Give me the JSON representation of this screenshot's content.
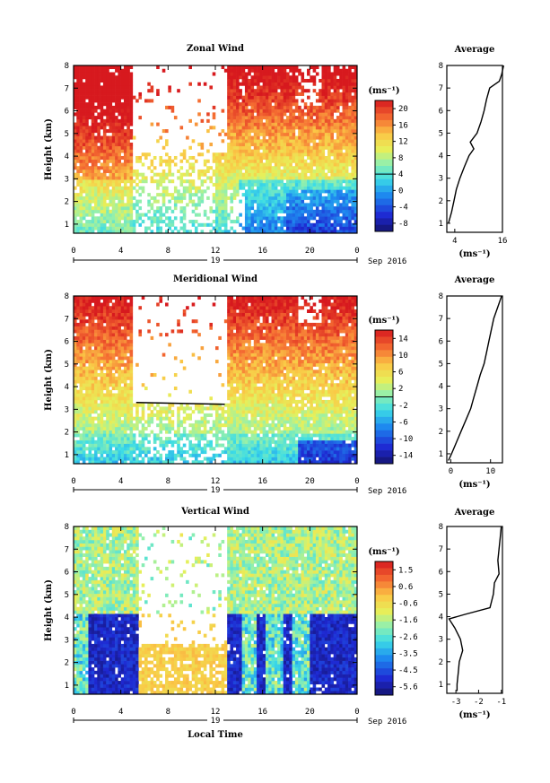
{
  "chart_data": [
    {
      "type": "heatmap",
      "title": "Zonal Wind",
      "ylabel": "Height (km)",
      "ylim": [
        0.6,
        8
      ],
      "yticks": [
        "1",
        "2",
        "3",
        "4",
        "5",
        "6",
        "7",
        "8"
      ],
      "xticks": [
        "0",
        "4",
        "8",
        "12",
        "16",
        "20",
        "0"
      ],
      "xlim": [
        0,
        24
      ],
      "date_label": "19",
      "month_label": "Sep 2016",
      "colorbar_unit": "(ms⁻¹)",
      "colorbar_ticks": [
        "20",
        "16",
        "12",
        "8",
        "4",
        "0",
        "-4",
        "-8"
      ],
      "colorbar_range": [
        -10,
        22
      ],
      "avg_title": "Average",
      "avg_xticks": [
        "4",
        "16"
      ],
      "avg_xlim": [
        2,
        16
      ],
      "avg_xlabel": "(ms⁻¹)",
      "avg_profile": [
        [
          1.0,
          2.4
        ],
        [
          1.5,
          3.2
        ],
        [
          2.0,
          3.8
        ],
        [
          2.5,
          4.4
        ],
        [
          3.0,
          5.3
        ],
        [
          3.5,
          6.4
        ],
        [
          4.0,
          7.6
        ],
        [
          4.3,
          8.8
        ],
        [
          4.6,
          7.9
        ],
        [
          5.0,
          9.6
        ],
        [
          5.5,
          10.6
        ],
        [
          6.0,
          11.4
        ],
        [
          6.5,
          12.0
        ],
        [
          7.0,
          12.8
        ],
        [
          7.3,
          15.2
        ],
        [
          7.6,
          15.8
        ],
        [
          8.0,
          16.3
        ]
      ]
    },
    {
      "type": "heatmap",
      "title": "Meridional Wind",
      "ylabel": "Height (km)",
      "ylim": [
        0.6,
        8
      ],
      "yticks": [
        "1",
        "2",
        "3",
        "4",
        "5",
        "6",
        "7",
        "8"
      ],
      "xticks": [
        "0",
        "4",
        "8",
        "12",
        "16",
        "20",
        "0"
      ],
      "xlim": [
        0,
        24
      ],
      "date_label": "19",
      "month_label": "Sep 2016",
      "colorbar_unit": "(ms⁻¹)",
      "colorbar_ticks": [
        "14",
        "10",
        "6",
        "2",
        "-2",
        "-6",
        "-10",
        "-14"
      ],
      "colorbar_range": [
        -16,
        16
      ],
      "avg_title": "Average",
      "avg_xticks": [
        "0",
        "10"
      ],
      "avg_xlim": [
        -1,
        13
      ],
      "avg_xlabel": "(ms⁻¹)",
      "avg_profile": [
        [
          0.7,
          -0.6
        ],
        [
          1.0,
          0.2
        ],
        [
          1.5,
          1.4
        ],
        [
          2.0,
          2.6
        ],
        [
          2.5,
          3.8
        ],
        [
          3.0,
          5.0
        ],
        [
          3.5,
          5.8
        ],
        [
          4.0,
          6.6
        ],
        [
          4.5,
          7.4
        ],
        [
          5.0,
          8.4
        ],
        [
          5.5,
          9.0
        ],
        [
          6.0,
          9.6
        ],
        [
          6.5,
          10.2
        ],
        [
          7.0,
          10.8
        ],
        [
          7.5,
          11.8
        ],
        [
          8.0,
          12.8
        ]
      ]
    },
    {
      "type": "heatmap",
      "title": "Vertical Wind",
      "ylabel": "Height (km)",
      "ylim": [
        0.6,
        8
      ],
      "yticks": [
        "1",
        "2",
        "3",
        "4",
        "5",
        "6",
        "7",
        "8"
      ],
      "xticks": [
        "0",
        "4",
        "8",
        "12",
        "16",
        "20",
        "0"
      ],
      "xlim": [
        0,
        24
      ],
      "date_label": "19",
      "month_label": "Sep 2016",
      "xlabel": "Local Time",
      "colorbar_unit": "(ms⁻¹)",
      "colorbar_ticks": [
        "1.5",
        "0.6",
        "-0.6",
        "-1.6",
        "-2.6",
        "-3.5",
        "-4.5",
        "-5.6"
      ],
      "colorbar_range": [
        -6.2,
        2.1
      ],
      "avg_title": "Average",
      "avg_xticks": [
        "-3",
        "-2",
        "-1"
      ],
      "avg_xlim": [
        -3.4,
        -0.95
      ],
      "avg_xlabel": "(ms⁻¹)",
      "avg_profile": [
        [
          0.7,
          -2.95
        ],
        [
          1.0,
          -2.95
        ],
        [
          1.5,
          -2.9
        ],
        [
          2.0,
          -2.85
        ],
        [
          2.5,
          -2.7
        ],
        [
          3.0,
          -2.8
        ],
        [
          3.5,
          -3.05
        ],
        [
          3.9,
          -3.3
        ],
        [
          4.1,
          -2.6
        ],
        [
          4.4,
          -1.5
        ],
        [
          5.0,
          -1.35
        ],
        [
          5.5,
          -1.3
        ],
        [
          5.9,
          -1.1
        ],
        [
          6.5,
          -1.15
        ],
        [
          7.0,
          -1.1
        ],
        [
          7.5,
          -1.05
        ],
        [
          8.0,
          -1.0
        ]
      ]
    }
  ]
}
